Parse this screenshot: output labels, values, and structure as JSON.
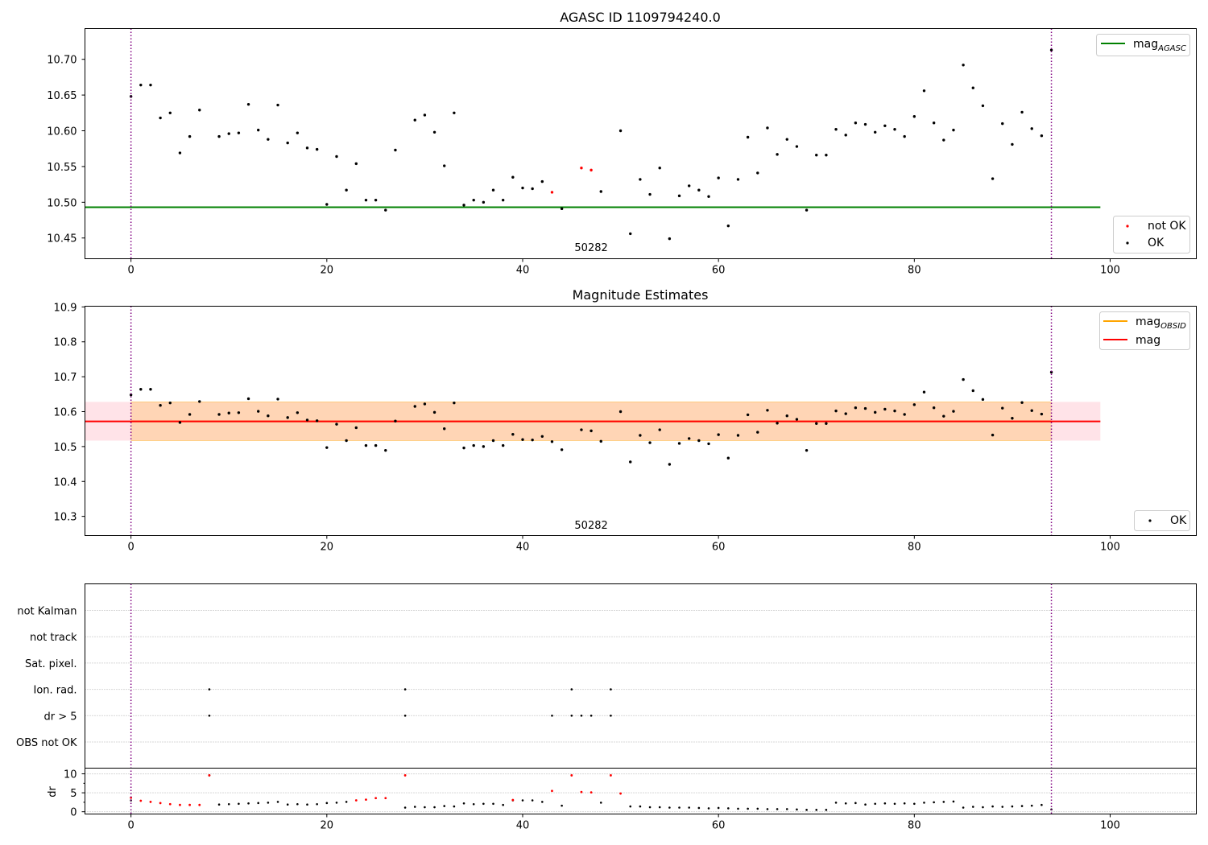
{
  "chart_data": [
    {
      "type": "scatter",
      "title": "AGASC ID 1109794240.0",
      "xlabel": "",
      "ylabel": "",
      "xlim": [
        -4.7,
        108.8
      ],
      "ylim": [
        10.421,
        10.743
      ],
      "xticks": [
        0,
        20,
        40,
        60,
        80,
        100
      ],
      "yticks": [
        10.45,
        10.5,
        10.55,
        10.6,
        10.65,
        10.7
      ],
      "ytick_labels": [
        "10.45",
        "10.50",
        "10.55",
        "10.60",
        "10.65",
        "10.70"
      ],
      "vlines": [
        0,
        94
      ],
      "obsid_label": "50282",
      "obsid_label_x": 47,
      "hline": {
        "name": "mag",
        "subscript": "AGASC",
        "y": 10.493,
        "x_range": [
          -4.7,
          99
        ],
        "color": "#008000"
      },
      "series": [
        {
          "name": "not OK",
          "color": "#ff0000",
          "x": [
            43,
            46,
            47
          ],
          "y": [
            10.514,
            10.548,
            10.545
          ]
        },
        {
          "name": "OK",
          "color": "#000000",
          "x": [
            0,
            1,
            2,
            3,
            4,
            5,
            6,
            7,
            9,
            10,
            11,
            12,
            13,
            14,
            15,
            16,
            17,
            18,
            19,
            20,
            21,
            22,
            23,
            24,
            25,
            26,
            27,
            29,
            30,
            31,
            32,
            33,
            34,
            35,
            36,
            37,
            38,
            39,
            40,
            41,
            42,
            44,
            48,
            50,
            51,
            52,
            53,
            54,
            55,
            56,
            57,
            58,
            59,
            60,
            61,
            62,
            63,
            64,
            65,
            66,
            67,
            68,
            69,
            70,
            71,
            72,
            73,
            74,
            75,
            76,
            77,
            78,
            79,
            80,
            81,
            82,
            83,
            84,
            85,
            86,
            87,
            88,
            89,
            90,
            91,
            92,
            93,
            94
          ],
          "y": [
            10.648,
            10.664,
            10.664,
            10.618,
            10.625,
            10.569,
            10.592,
            10.629,
            10.592,
            10.596,
            10.597,
            10.637,
            10.601,
            10.588,
            10.636,
            10.583,
            10.597,
            10.576,
            10.574,
            10.497,
            10.564,
            10.517,
            10.554,
            10.503,
            10.503,
            10.489,
            10.573,
            10.615,
            10.622,
            10.598,
            10.551,
            10.625,
            10.496,
            10.503,
            10.5,
            10.517,
            10.503,
            10.535,
            10.52,
            10.519,
            10.529,
            10.491,
            10.515,
            10.6,
            10.456,
            10.532,
            10.511,
            10.548,
            10.449,
            10.509,
            10.523,
            10.517,
            10.508,
            10.534,
            10.467,
            10.532,
            10.591,
            10.541,
            10.604,
            10.567,
            10.588,
            10.578,
            10.489,
            10.566,
            10.566,
            10.602,
            10.594,
            10.611,
            10.609,
            10.598,
            10.607,
            10.602,
            10.592,
            10.62,
            10.656,
            10.611,
            10.587,
            10.601,
            10.692,
            10.66,
            10.635,
            10.533,
            10.61,
            10.581,
            10.626,
            10.603,
            10.593,
            10.713
          ]
        }
      ],
      "legend": {
        "line": "top-right",
        "points": "bottom-right"
      }
    },
    {
      "type": "scatter",
      "title": "Magnitude Estimates",
      "xlabel": "",
      "ylabel": "",
      "xlim": [
        -4.7,
        108.8
      ],
      "ylim": [
        10.245,
        10.902
      ],
      "xticks": [
        0,
        20,
        40,
        60,
        80,
        100
      ],
      "yticks": [
        10.3,
        10.4,
        10.5,
        10.6,
        10.7,
        10.8,
        10.9
      ],
      "ytick_labels": [
        "10.3",
        "10.4",
        "10.5",
        "10.6",
        "10.7",
        "10.8",
        "10.9"
      ],
      "vlines": [
        0,
        94
      ],
      "obsid_label": "50282",
      "obsid_label_x": 47,
      "bands": [
        {
          "y": [
            10.517,
            10.628
          ],
          "x_range": [
            -4.7,
            99
          ],
          "color": "#ffc0cb",
          "opacity": 0.45
        },
        {
          "y": [
            10.517,
            10.628
          ],
          "x_range": [
            0,
            94
          ],
          "color": "#ffa500",
          "opacity": 0.22
        }
      ],
      "lines": [
        {
          "name": "mag",
          "subscript": "OBSID",
          "y": 10.572,
          "x_range": [
            0,
            94
          ],
          "color": "#ffa500"
        },
        {
          "name": "mag",
          "subscript": "",
          "y": 10.572,
          "x_range": [
            -4.7,
            99
          ],
          "color": "#ff0000"
        }
      ],
      "series": [
        {
          "name": "OK",
          "color": "#000000",
          "ref": "same points as panel 1 (OK and not OK combined)"
        }
      ],
      "legend": {
        "lines": "top-right",
        "points": "bottom-right"
      }
    },
    {
      "type": "scatter",
      "title": "",
      "xlabel": "",
      "ylabel": "dr",
      "xlim": [
        -4.7,
        108.8
      ],
      "xticks": [
        0,
        20,
        40,
        60,
        80,
        100
      ],
      "vlines": [
        0,
        94
      ],
      "flag_rows": [
        "not Kalman",
        "not track",
        "Sat. pixel.",
        "Ion. rad.",
        "dr > 5",
        "OBS not OK"
      ],
      "flags": {
        "Ion. rad.": [
          8,
          28,
          45,
          49
        ],
        "dr > 5": [
          8,
          28,
          43,
          45,
          46,
          47,
          49
        ]
      },
      "dr": {
        "ylim": [
          -0.6,
          11.5
        ],
        "yticks": [
          0,
          5,
          10
        ],
        "ytick_labels": [
          "0",
          "5",
          "10"
        ],
        "black_x": [
          0,
          8,
          9,
          10,
          11,
          12,
          13,
          14,
          15,
          16,
          17,
          18,
          19,
          20,
          21,
          22,
          28,
          29,
          30,
          31,
          32,
          33,
          34,
          35,
          36,
          37,
          38,
          39,
          40,
          41,
          42,
          44,
          48,
          51,
          52,
          53,
          54,
          55,
          56,
          57,
          58,
          59,
          60,
          61,
          62,
          63,
          64,
          65,
          66,
          67,
          68,
          69,
          70,
          71,
          72,
          73,
          74,
          75,
          76,
          77,
          78,
          79,
          80,
          81,
          82,
          83,
          84,
          85,
          86,
          87,
          88,
          89,
          90,
          91,
          92,
          93,
          94
        ],
        "black_y": [
          3.0,
          9.6,
          1.9,
          2.0,
          2.1,
          2.2,
          2.3,
          2.4,
          2.6,
          1.9,
          2.0,
          1.9,
          2.0,
          2.3,
          2.4,
          2.6,
          1.1,
          1.3,
          1.2,
          1.2,
          1.5,
          1.4,
          2.2,
          2.0,
          2.1,
          2.1,
          1.8,
          3.0,
          3.0,
          3.0,
          2.6,
          1.6,
          2.4,
          1.4,
          1.4,
          1.2,
          1.2,
          1.1,
          1.1,
          1.1,
          1.0,
          0.9,
          1.0,
          0.9,
          0.8,
          0.8,
          0.8,
          0.7,
          0.7,
          0.7,
          0.6,
          0.5,
          0.5,
          0.5,
          2.4,
          2.2,
          2.3,
          1.9,
          2.1,
          2.2,
          2.1,
          2.2,
          2.1,
          2.4,
          2.5,
          2.6,
          2.7,
          1.1,
          1.3,
          1.2,
          1.4,
          1.3,
          1.4,
          1.5,
          1.6,
          1.8,
          0.6
        ],
        "red_x": [
          0,
          1,
          2,
          3,
          4,
          5,
          6,
          7,
          8,
          23,
          24,
          25,
          26,
          28,
          39,
          43,
          45,
          46,
          47,
          49,
          50
        ],
        "red_y": [
          3.7,
          2.9,
          2.6,
          2.3,
          2.0,
          1.8,
          1.8,
          1.8,
          9.6,
          3.0,
          3.2,
          3.6,
          3.6,
          9.6,
          3.1,
          5.5,
          9.6,
          5.2,
          5.1,
          9.6,
          4.8
        ]
      }
    }
  ]
}
